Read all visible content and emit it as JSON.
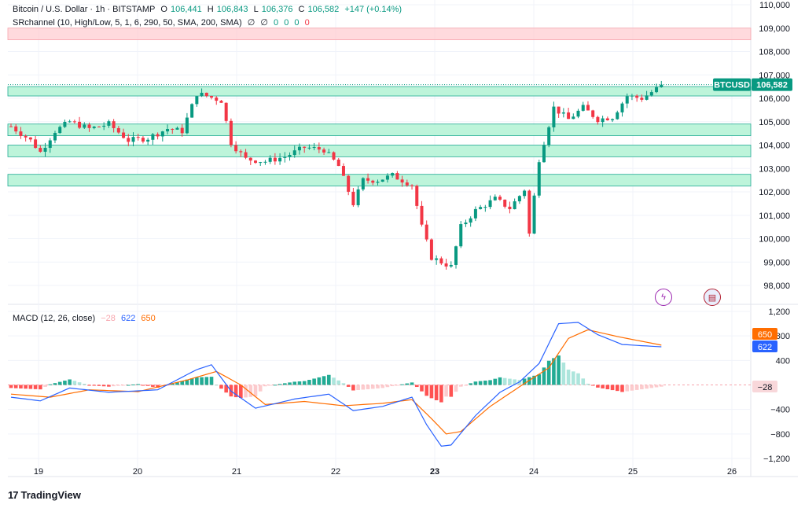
{
  "header": {
    "symbol": "Bitcoin / U.S. Dollar · 1h · BITSTAMP",
    "open_label": "O",
    "open": "106,441",
    "high_label": "H",
    "high": "106,843",
    "low_label": "L",
    "low": "106,376",
    "close_label": "C",
    "close": "106,582",
    "change": "+147 (+0.14%)",
    "indicator": "SRchannel (10, High/Low, 5, 1, 6, 290, 50, SMA, 200, SMA)",
    "indicator_values": [
      "∅",
      "∅",
      "0",
      "0",
      "0",
      "0"
    ]
  },
  "macd_header": {
    "label": "MACD (12, 26, close)",
    "hist": "−28",
    "macd": "622",
    "signal": "650"
  },
  "price_tag": {
    "symbol": "BTCUSD",
    "value": "106,582"
  },
  "macd_tags": {
    "signal": "650",
    "macd": "622",
    "hist": "−28"
  },
  "branding": {
    "name": "TradingView"
  },
  "colors": {
    "up": "#089981",
    "down": "#f23645",
    "macd": "#2962ff",
    "signal": "#ff6d00",
    "zone": "#b2f2d4",
    "red_zone": "#ffcdd2"
  },
  "chart_data": {
    "type": "candlestick",
    "price_axis": {
      "ylim": [
        97500,
        110000
      ],
      "ticks": [
        110000,
        109000,
        108000,
        107000,
        106000,
        105000,
        104000,
        103000,
        102000,
        101000,
        100000,
        99000,
        98000
      ],
      "tick_labels": [
        "110,000",
        "109,000",
        "108,000",
        "107,000",
        "106,000",
        "105,000",
        "104,000",
        "103,000",
        "102,000",
        "101,000",
        "100,000",
        "99,000",
        "98,000"
      ]
    },
    "x_axis": {
      "ticks": [
        "19",
        "20",
        "21",
        "22",
        "23",
        "24",
        "25",
        "26"
      ],
      "bold": "23"
    },
    "support_resistance_zones": [
      {
        "low": 108500,
        "high": 109000,
        "kind": "resistance"
      },
      {
        "low": 106100,
        "high": 106500,
        "kind": "support"
      },
      {
        "low": 104400,
        "high": 104900,
        "kind": "support"
      },
      {
        "low": 103500,
        "high": 104000,
        "kind": "support"
      },
      {
        "low": 102250,
        "high": 102750,
        "kind": "support"
      }
    ],
    "last_price": 106582,
    "anchors": [
      {
        "t": 0,
        "p": 104800
      },
      {
        "t": 2,
        "p": 104500
      },
      {
        "t": 4,
        "p": 104200
      },
      {
        "t": 6,
        "p": 103700
      },
      {
        "t": 9,
        "p": 104600
      },
      {
        "t": 12,
        "p": 105000
      },
      {
        "t": 16,
        "p": 104700
      },
      {
        "t": 20,
        "p": 104900
      },
      {
        "t": 24,
        "p": 104200
      },
      {
        "t": 28,
        "p": 104300
      },
      {
        "t": 32,
        "p": 104700
      },
      {
        "t": 35,
        "p": 104600
      },
      {
        "t": 38,
        "p": 106200
      },
      {
        "t": 40,
        "p": 106100
      },
      {
        "t": 43,
        "p": 105900
      },
      {
        "t": 45,
        "p": 104100
      },
      {
        "t": 48,
        "p": 103400
      },
      {
        "t": 52,
        "p": 103300
      },
      {
        "t": 56,
        "p": 103500
      },
      {
        "t": 60,
        "p": 103900
      },
      {
        "t": 64,
        "p": 103800
      },
      {
        "t": 67,
        "p": 103100
      },
      {
        "t": 70,
        "p": 101500
      },
      {
        "t": 72,
        "p": 102500
      },
      {
        "t": 75,
        "p": 102500
      },
      {
        "t": 78,
        "p": 102700
      },
      {
        "t": 82,
        "p": 102300
      },
      {
        "t": 84,
        "p": 100500
      },
      {
        "t": 86,
        "p": 99200
      },
      {
        "t": 88,
        "p": 99000
      },
      {
        "t": 90,
        "p": 98800
      },
      {
        "t": 92,
        "p": 100500
      },
      {
        "t": 95,
        "p": 101200
      },
      {
        "t": 99,
        "p": 101700
      },
      {
        "t": 102,
        "p": 101300
      },
      {
        "t": 105,
        "p": 102100
      },
      {
        "t": 106,
        "p": 100200
      },
      {
        "t": 108,
        "p": 103400
      },
      {
        "t": 111,
        "p": 105600
      },
      {
        "t": 114,
        "p": 105100
      },
      {
        "t": 117,
        "p": 105600
      },
      {
        "t": 120,
        "p": 105100
      },
      {
        "t": 123,
        "p": 105200
      },
      {
        "t": 126,
        "p": 106100
      },
      {
        "t": 129,
        "p": 106000
      },
      {
        "t": 132,
        "p": 106400
      },
      {
        "t": 133,
        "p": 106582
      }
    ],
    "macd_panel": {
      "ylim": [
        -1250,
        1300
      ],
      "ticks": [
        1200,
        800,
        400,
        -400,
        -800,
        -1200
      ],
      "tick_labels": [
        "1,200",
        "800",
        "400",
        "−400",
        "−800",
        "−1,200"
      ],
      "macd_line": [
        {
          "t": 0,
          "v": -200
        },
        {
          "t": 6,
          "v": -260
        },
        {
          "t": 12,
          "v": -50
        },
        {
          "t": 20,
          "v": -120
        },
        {
          "t": 30,
          "v": -80
        },
        {
          "t": 38,
          "v": 250
        },
        {
          "t": 41,
          "v": 330
        },
        {
          "t": 45,
          "v": -100
        },
        {
          "t": 50,
          "v": -380
        },
        {
          "t": 58,
          "v": -230
        },
        {
          "t": 65,
          "v": -150
        },
        {
          "t": 70,
          "v": -420
        },
        {
          "t": 76,
          "v": -350
        },
        {
          "t": 82,
          "v": -200
        },
        {
          "t": 85,
          "v": -650
        },
        {
          "t": 88,
          "v": -1000
        },
        {
          "t": 90,
          "v": -980
        },
        {
          "t": 95,
          "v": -500
        },
        {
          "t": 100,
          "v": -120
        },
        {
          "t": 104,
          "v": 50
        },
        {
          "t": 108,
          "v": 350
        },
        {
          "t": 112,
          "v": 1000
        },
        {
          "t": 116,
          "v": 1020
        },
        {
          "t": 120,
          "v": 820
        },
        {
          "t": 125,
          "v": 660
        },
        {
          "t": 133,
          "v": 622
        }
      ],
      "signal_line": [
        {
          "t": 0,
          "v": -150
        },
        {
          "t": 8,
          "v": -200
        },
        {
          "t": 16,
          "v": -80
        },
        {
          "t": 26,
          "v": -110
        },
        {
          "t": 36,
          "v": 80
        },
        {
          "t": 42,
          "v": 220
        },
        {
          "t": 47,
          "v": 0
        },
        {
          "t": 52,
          "v": -320
        },
        {
          "t": 60,
          "v": -270
        },
        {
          "t": 68,
          "v": -340
        },
        {
          "t": 76,
          "v": -300
        },
        {
          "t": 82,
          "v": -240
        },
        {
          "t": 86,
          "v": -550
        },
        {
          "t": 89,
          "v": -800
        },
        {
          "t": 92,
          "v": -760
        },
        {
          "t": 98,
          "v": -350
        },
        {
          "t": 104,
          "v": -30
        },
        {
          "t": 110,
          "v": 280
        },
        {
          "t": 114,
          "v": 760
        },
        {
          "t": 118,
          "v": 900
        },
        {
          "t": 124,
          "v": 790
        },
        {
          "t": 133,
          "v": 650
        }
      ]
    }
  }
}
